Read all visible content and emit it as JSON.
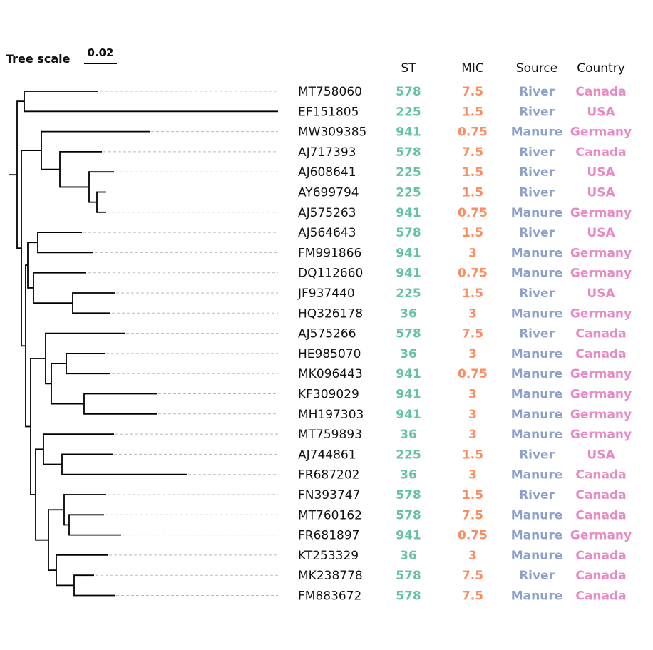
{
  "scale": {
    "title": "Tree scale",
    "value": "0.02"
  },
  "headers": {
    "st": "ST",
    "mic": "MIC",
    "source": "Source",
    "country": "Country"
  },
  "colors": {
    "st": "#66c2a5",
    "mic": "#fc8d62",
    "source": "#8da0cb",
    "country": "#e78ac3",
    "branch": "#000000",
    "leader": "#bbbbbb"
  },
  "tips": [
    {
      "id": "MT758060",
      "st": "578",
      "mic": "7.5",
      "source": "River",
      "country": "Canada"
    },
    {
      "id": "EF151805",
      "st": "225",
      "mic": "1.5",
      "source": "River",
      "country": "USA"
    },
    {
      "id": "MW309385",
      "st": "941",
      "mic": "0.75",
      "source": "Manure",
      "country": "Germany"
    },
    {
      "id": "AJ717393",
      "st": "578",
      "mic": "7.5",
      "source": "River",
      "country": "Canada"
    },
    {
      "id": "AJ608641",
      "st": "225",
      "mic": "1.5",
      "source": "River",
      "country": "USA"
    },
    {
      "id": "AY699794",
      "st": "225",
      "mic": "1.5",
      "source": "River",
      "country": "USA"
    },
    {
      "id": "AJ575263",
      "st": "941",
      "mic": "0.75",
      "source": "Manure",
      "country": "Germany"
    },
    {
      "id": "AJ564643",
      "st": "578",
      "mic": "1.5",
      "source": "River",
      "country": "USA"
    },
    {
      "id": "FM991866",
      "st": "941",
      "mic": "3",
      "source": "Manure",
      "country": "Germany"
    },
    {
      "id": "DQ112660",
      "st": "941",
      "mic": "0.75",
      "source": "Manure",
      "country": "Germany"
    },
    {
      "id": "JF937440",
      "st": "225",
      "mic": "1.5",
      "source": "River",
      "country": "USA"
    },
    {
      "id": "HQ326178",
      "st": "36",
      "mic": "3",
      "source": "Manure",
      "country": "Germany"
    },
    {
      "id": "AJ575266",
      "st": "578",
      "mic": "7.5",
      "source": "River",
      "country": "Canada"
    },
    {
      "id": "HE985070",
      "st": "36",
      "mic": "3",
      "source": "Manure",
      "country": "Canada"
    },
    {
      "id": "MK096443",
      "st": "941",
      "mic": "0.75",
      "source": "Manure",
      "country": "Germany"
    },
    {
      "id": "KF309029",
      "st": "941",
      "mic": "3",
      "source": "Manure",
      "country": "Germany"
    },
    {
      "id": "MH197303",
      "st": "941",
      "mic": "3",
      "source": "Manure",
      "country": "Germany"
    },
    {
      "id": "MT759893",
      "st": "36",
      "mic": "3",
      "source": "Manure",
      "country": "Germany"
    },
    {
      "id": "AJ744861",
      "st": "225",
      "mic": "1.5",
      "source": "River",
      "country": "USA"
    },
    {
      "id": "FR687202",
      "st": "36",
      "mic": "3",
      "source": "Manure",
      "country": "Canada"
    },
    {
      "id": "FN393747",
      "st": "578",
      "mic": "1.5",
      "source": "River",
      "country": "Canada"
    },
    {
      "id": "MT760162",
      "st": "578",
      "mic": "7.5",
      "source": "Manure",
      "country": "Canada"
    },
    {
      "id": "FR681897",
      "st": "941",
      "mic": "0.75",
      "source": "Manure",
      "country": "Germany"
    },
    {
      "id": "KT253329",
      "st": "36",
      "mic": "3",
      "source": "Manure",
      "country": "Canada"
    },
    {
      "id": "MK238778",
      "st": "578",
      "mic": "7.5",
      "source": "River",
      "country": "Canada"
    },
    {
      "id": "FM883672",
      "st": "578",
      "mic": "7.5",
      "source": "Manure",
      "country": "Canada"
    }
  ]
}
